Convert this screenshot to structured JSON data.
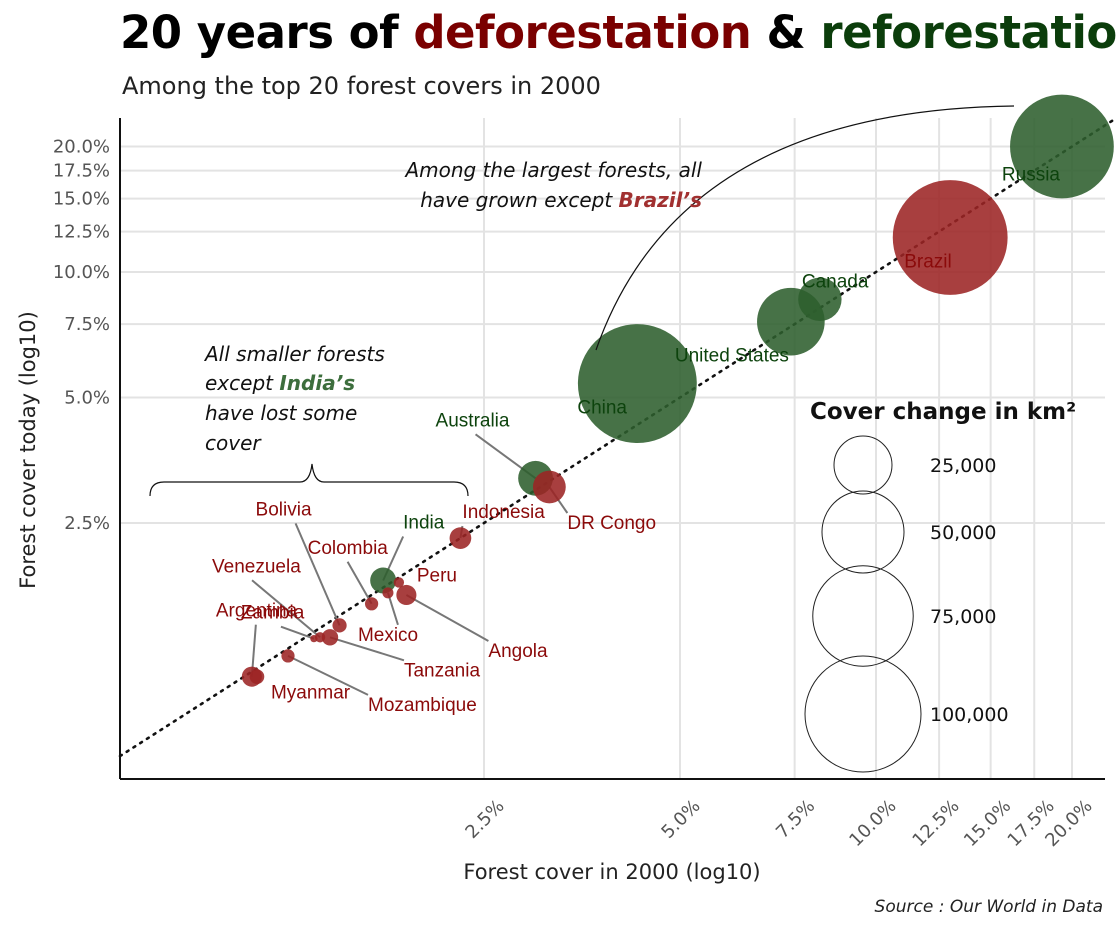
{
  "title": {
    "part1": "20 years of ",
    "deforestation": "deforestation",
    "amp": " & ",
    "reforestation": "reforestation"
  },
  "subtitle": "Among the top 20 forest covers in 2000",
  "source": "Source : Our World in Data",
  "colors": {
    "deforestation": "#7a0000",
    "reforestation": "#0b3d0b",
    "bubble_loss": "#9c2424",
    "bubble_gain": "#2e5e2e",
    "label_loss": "#8b0a0a",
    "label_gain": "#0d430d",
    "highlight_brazil": "#a13030",
    "highlight_india": "#3d6e3d"
  },
  "annotations": {
    "large": {
      "line1": "Among the largest forests, all",
      "line2_prefix": "have grown except ",
      "line2_highlight": "Brazil’s"
    },
    "small": {
      "line1": "All smaller forests",
      "line2_prefix": "except ",
      "line2_highlight": "India’s",
      "line3": "have lost some",
      "line4": "cover"
    }
  },
  "chart_data": {
    "type": "scatter",
    "xlabel": "Forest cover in 2000 (log10)",
    "ylabel": "Forest cover today (log10)",
    "x_scale": "log10",
    "y_scale": "log10",
    "x_ticks": [
      {
        "value": 2.5,
        "label": "2.5%"
      },
      {
        "value": 5.0,
        "label": "5.0%"
      },
      {
        "value": 7.5,
        "label": "7.5%"
      },
      {
        "value": 10.0,
        "label": "10.0%"
      },
      {
        "value": 12.5,
        "label": "12.5%"
      },
      {
        "value": 15.0,
        "label": "15.0%"
      },
      {
        "value": 17.5,
        "label": "17.5%"
      },
      {
        "value": 20.0,
        "label": "20.0%"
      }
    ],
    "y_ticks": [
      {
        "value": 2.5,
        "label": "2.5%"
      },
      {
        "value": 5.0,
        "label": "5.0%"
      },
      {
        "value": 7.5,
        "label": "7.5%"
      },
      {
        "value": 10.0,
        "label": "10.0%"
      },
      {
        "value": 12.5,
        "label": "12.5%"
      },
      {
        "value": 15.0,
        "label": "15.0%"
      },
      {
        "value": 17.5,
        "label": "17.5%"
      },
      {
        "value": 20.0,
        "label": "20.0%"
      }
    ],
    "reference_line": "y = x (dotted)",
    "grid": true,
    "legend_position": "right",
    "size_legend": {
      "title": "Cover change in km²",
      "entries": [
        {
          "value": 25000,
          "label": "25,000"
        },
        {
          "value": 50000,
          "label": "50,000"
        },
        {
          "value": 75000,
          "label": "75,000"
        },
        {
          "value": 100000,
          "label": "100,000"
        }
      ]
    },
    "points": [
      {
        "name": "Russia",
        "x": 19.3,
        "y": 20.0,
        "change_km2": 80000,
        "direction": "gain"
      },
      {
        "name": "Brazil",
        "x": 13.0,
        "y": 12.1,
        "change_km2": 98000,
        "direction": "loss"
      },
      {
        "name": "Canada",
        "x": 8.2,
        "y": 8.6,
        "change_km2": 14000,
        "direction": "gain"
      },
      {
        "name": "United States",
        "x": 7.4,
        "y": 7.6,
        "change_km2": 34000,
        "direction": "gain"
      },
      {
        "name": "China",
        "x": 4.3,
        "y": 5.4,
        "change_km2": 105000,
        "direction": "gain"
      },
      {
        "name": "Australia",
        "x": 3.0,
        "y": 3.2,
        "change_km2": 9000,
        "direction": "gain"
      },
      {
        "name": "DR Congo",
        "x": 3.15,
        "y": 3.05,
        "change_km2": 8000,
        "direction": "loss"
      },
      {
        "name": "Indonesia",
        "x": 2.3,
        "y": 2.3,
        "change_km2": 3500,
        "direction": "loss"
      },
      {
        "name": "India",
        "x": 1.75,
        "y": 1.82,
        "change_km2": 5000,
        "direction": "gain"
      },
      {
        "name": "Peru",
        "x": 1.85,
        "y": 1.8,
        "change_km2": 800,
        "direction": "loss"
      },
      {
        "name": "Angola",
        "x": 1.9,
        "y": 1.68,
        "change_km2": 3000,
        "direction": "loss"
      },
      {
        "name": "Mexico",
        "x": 1.78,
        "y": 1.7,
        "change_km2": 900,
        "direction": "loss"
      },
      {
        "name": "Colombia",
        "x": 1.68,
        "y": 1.6,
        "change_km2": 1300,
        "direction": "loss"
      },
      {
        "name": "Bolivia",
        "x": 1.5,
        "y": 1.42,
        "change_km2": 1500,
        "direction": "loss"
      },
      {
        "name": "Venezuela",
        "x": 1.4,
        "y": 1.33,
        "change_km2": 800,
        "direction": "loss"
      },
      {
        "name": "Zambia",
        "x": 1.37,
        "y": 1.32,
        "change_km2": 400,
        "direction": "loss"
      },
      {
        "name": "Tanzania",
        "x": 1.45,
        "y": 1.33,
        "change_km2": 2000,
        "direction": "loss"
      },
      {
        "name": "Mozambique",
        "x": 1.25,
        "y": 1.2,
        "change_km2": 1300,
        "direction": "loss"
      },
      {
        "name": "Argentina",
        "x": 1.1,
        "y": 1.07,
        "change_km2": 3000,
        "direction": "loss"
      },
      {
        "name": "Myanmar",
        "x": 1.12,
        "y": 1.07,
        "change_km2": 1600,
        "direction": "loss"
      }
    ]
  }
}
